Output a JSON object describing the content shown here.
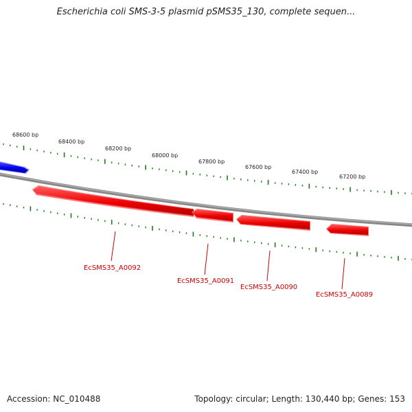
{
  "title": "Escherichia coli SMS-3-5 plasmid pSMS35_130, complete sequen...",
  "accession_label": "Accession: NC_010488",
  "summary_label": "Topology: circular; Length: 130,440 bp; Genes: 153",
  "colors": {
    "backbone": "#888888",
    "tick": "#1a7a1a",
    "forward_gene": "#0000ee",
    "reverse_gene": "#ee0000",
    "gene_label": "#cc0000"
  },
  "ticks": [
    "68600 bp",
    "68400 bp",
    "68200 bp",
    "68000 bp",
    "67800 bp",
    "67600 bp",
    "67400 bp",
    "67200 bp"
  ],
  "genes": [
    {
      "label": "",
      "strand": "forward"
    },
    {
      "label": "EcSMS35_A0092",
      "strand": "reverse"
    },
    {
      "label": "EcSMS35_A0091",
      "strand": "reverse"
    },
    {
      "label": "EcSMS35_A0090",
      "strand": "reverse"
    },
    {
      "label": "EcSMS35_A0089",
      "strand": "reverse"
    }
  ]
}
